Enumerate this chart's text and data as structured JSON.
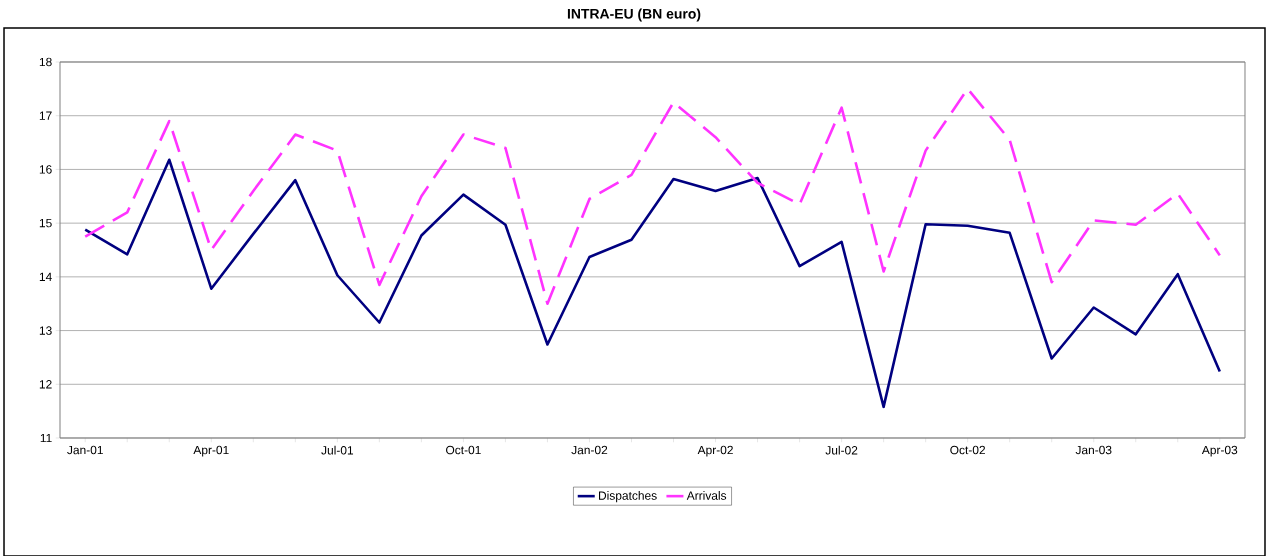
{
  "chart_data": {
    "type": "line",
    "title": "INTRA-EU  (BN euro)",
    "categories": [
      "Jan-01",
      null,
      null,
      "Apr-01",
      null,
      null,
      "Jul-01",
      null,
      null,
      "Oct-01",
      null,
      null,
      "Jan-02",
      null,
      null,
      "Apr-02",
      null,
      null,
      "Jul-02",
      null,
      null,
      "Oct-02",
      null,
      null,
      "Jan-03",
      null,
      null,
      "Apr-03"
    ],
    "series": [
      {
        "name": "Dispatches",
        "color": "#000080",
        "line_style": "solid",
        "values": [
          14.88,
          14.42,
          16.18,
          13.78,
          14.8,
          15.8,
          14.03,
          13.15,
          14.77,
          15.53,
          14.97,
          12.74,
          14.37,
          14.69,
          15.82,
          15.6,
          15.84,
          14.2,
          14.65,
          11.58,
          14.98,
          14.95,
          14.82,
          12.48,
          13.43,
          12.93,
          14.05,
          12.24
        ]
      },
      {
        "name": "Arrivals",
        "color": "#ff33ff",
        "line_style": "dashed",
        "values": [
          14.75,
          15.2,
          16.9,
          14.5,
          15.6,
          16.65,
          16.35,
          13.85,
          15.5,
          16.65,
          16.4,
          13.5,
          15.45,
          15.9,
          17.25,
          16.6,
          15.75,
          15.35,
          17.15,
          14.1,
          16.35,
          17.5,
          16.55,
          13.9,
          15.05,
          14.97,
          15.55,
          14.4
        ]
      }
    ],
    "ylim": [
      11,
      18
    ],
    "yticks": [
      11,
      12,
      13,
      14,
      15,
      16,
      17,
      18
    ],
    "grid": "y",
    "legend": "bottom",
    "marker": "none"
  }
}
